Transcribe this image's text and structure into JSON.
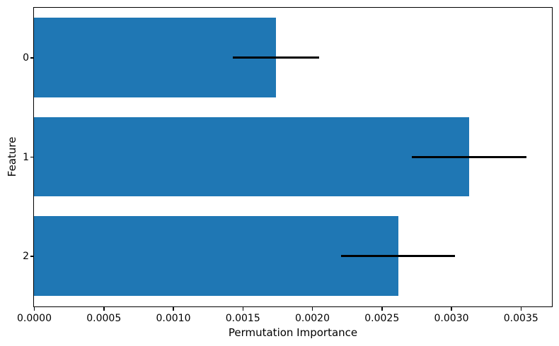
{
  "chart_data": {
    "type": "bar",
    "orientation": "horizontal",
    "title": "",
    "xlabel": "Permutation Importance",
    "ylabel": "Feature",
    "categories": [
      "0",
      "1",
      "2"
    ],
    "series": [
      {
        "name": "permutation importance",
        "values": [
          0.00174,
          0.00313,
          0.00262
        ],
        "errors": [
          0.00031,
          0.00041,
          0.00041
        ]
      }
    ],
    "xlim": [
      0,
      0.00372
    ],
    "xticks": [
      0.0,
      0.0005,
      0.001,
      0.0015,
      0.002,
      0.0025,
      0.003,
      0.0035
    ],
    "xtick_labels": [
      "0.0000",
      "0.0005",
      "0.0010",
      "0.0015",
      "0.0020",
      "0.0025",
      "0.0030",
      "0.0035"
    ],
    "bar_order_top_to_bottom": [
      "0",
      "1",
      "2"
    ],
    "bar_fraction_of_band": 0.8,
    "grid": false,
    "legend": false,
    "colors": {
      "bar": "#1f77b4",
      "error_bar": "#000000",
      "text": "#000000",
      "background": "#ffffff"
    }
  }
}
